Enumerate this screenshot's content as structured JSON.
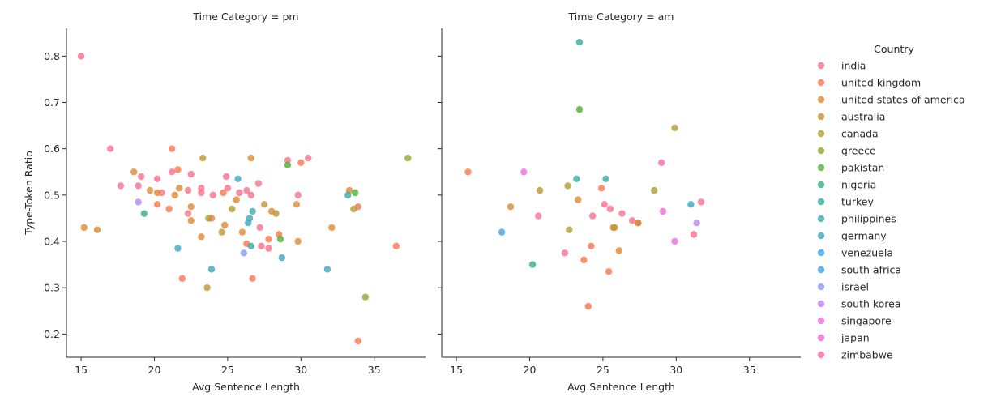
{
  "chart_data": {
    "type": "scatter",
    "xlabel": "Avg Sentence Length",
    "ylabel": "Type-Token Ratio",
    "xlim": [
      14,
      38.5
    ],
    "ylim": [
      0.15,
      0.86
    ],
    "xticks": [
      15,
      20,
      25,
      30,
      35
    ],
    "yticks": [
      0.2,
      0.3,
      0.4,
      0.5,
      0.6,
      0.7,
      0.8
    ],
    "grid": false,
    "legend": {
      "title": "Country",
      "placement": "right",
      "entries": [
        {
          "label": "india",
          "color": "#f77189"
        },
        {
          "label": "united kingdom",
          "color": "#f7754f"
        },
        {
          "label": "united states of america",
          "color": "#dc8932"
        },
        {
          "label": "australia",
          "color": "#c39532"
        },
        {
          "label": "canada",
          "color": "#ae9d31"
        },
        {
          "label": "greece",
          "color": "#97a431"
        },
        {
          "label": "pakistan",
          "color": "#50b131"
        },
        {
          "label": "nigeria",
          "color": "#34af84"
        },
        {
          "label": "turkey",
          "color": "#36ad9c"
        },
        {
          "label": "philippines",
          "color": "#38aaac"
        },
        {
          "label": "germany",
          "color": "#39a7bb"
        },
        {
          "label": "venezuela",
          "color": "#3ba3ec"
        },
        {
          "label": "south africa",
          "color": "#3ba3ec"
        },
        {
          "label": "israel",
          "color": "#8e96f4"
        },
        {
          "label": "south korea",
          "color": "#bb83f4"
        },
        {
          "label": "singapore",
          "color": "#ed6de0"
        },
        {
          "label": "japan",
          "color": "#f564d4"
        },
        {
          "label": "zimbabwe",
          "color": "#f66bad"
        }
      ]
    },
    "panels": [
      {
        "title": "Time Category = pm",
        "points": [
          {
            "c": 0,
            "x": 15.0,
            "y": 0.8
          },
          {
            "c": 0,
            "x": 17.0,
            "y": 0.6
          },
          {
            "c": 0,
            "x": 17.7,
            "y": 0.52
          },
          {
            "c": 0,
            "x": 18.9,
            "y": 0.52
          },
          {
            "c": 0,
            "x": 19.1,
            "y": 0.54
          },
          {
            "c": 0,
            "x": 20.2,
            "y": 0.535
          },
          {
            "c": 0,
            "x": 20.5,
            "y": 0.505
          },
          {
            "c": 0,
            "x": 21.2,
            "y": 0.55
          },
          {
            "c": 0,
            "x": 22.3,
            "y": 0.51
          },
          {
            "c": 0,
            "x": 22.5,
            "y": 0.545
          },
          {
            "c": 0,
            "x": 23.2,
            "y": 0.515
          },
          {
            "c": 0,
            "x": 23.2,
            "y": 0.505
          },
          {
            "c": 0,
            "x": 24.0,
            "y": 0.5
          },
          {
            "c": 0,
            "x": 24.9,
            "y": 0.54
          },
          {
            "c": 0,
            "x": 25.0,
            "y": 0.515
          },
          {
            "c": 0,
            "x": 25.8,
            "y": 0.505
          },
          {
            "c": 0,
            "x": 26.3,
            "y": 0.51
          },
          {
            "c": 0,
            "x": 26.6,
            "y": 0.5
          },
          {
            "c": 0,
            "x": 27.1,
            "y": 0.525
          },
          {
            "c": 0,
            "x": 27.2,
            "y": 0.43
          },
          {
            "c": 0,
            "x": 27.3,
            "y": 0.39
          },
          {
            "c": 0,
            "x": 27.8,
            "y": 0.385
          },
          {
            "c": 0,
            "x": 29.1,
            "y": 0.575
          },
          {
            "c": 0,
            "x": 29.8,
            "y": 0.5
          },
          {
            "c": 0,
            "x": 30.5,
            "y": 0.58
          },
          {
            "c": 0,
            "x": 22.3,
            "y": 0.46
          },
          {
            "c": 1,
            "x": 20.2,
            "y": 0.48
          },
          {
            "c": 1,
            "x": 21.0,
            "y": 0.47
          },
          {
            "c": 1,
            "x": 21.2,
            "y": 0.6
          },
          {
            "c": 1,
            "x": 21.6,
            "y": 0.555
          },
          {
            "c": 1,
            "x": 21.9,
            "y": 0.32
          },
          {
            "c": 1,
            "x": 23.9,
            "y": 0.45
          },
          {
            "c": 1,
            "x": 24.7,
            "y": 0.505
          },
          {
            "c": 1,
            "x": 26.3,
            "y": 0.395
          },
          {
            "c": 1,
            "x": 26.7,
            "y": 0.32
          },
          {
            "c": 1,
            "x": 27.8,
            "y": 0.405
          },
          {
            "c": 1,
            "x": 28.5,
            "y": 0.415
          },
          {
            "c": 1,
            "x": 30.0,
            "y": 0.57
          },
          {
            "c": 1,
            "x": 33.9,
            "y": 0.475
          },
          {
            "c": 1,
            "x": 33.9,
            "y": 0.185
          },
          {
            "c": 1,
            "x": 36.5,
            "y": 0.39
          },
          {
            "c": 2,
            "x": 15.2,
            "y": 0.43
          },
          {
            "c": 2,
            "x": 16.1,
            "y": 0.425
          },
          {
            "c": 2,
            "x": 18.6,
            "y": 0.55
          },
          {
            "c": 2,
            "x": 19.7,
            "y": 0.51
          },
          {
            "c": 2,
            "x": 20.2,
            "y": 0.505
          },
          {
            "c": 2,
            "x": 21.4,
            "y": 0.5
          },
          {
            "c": 2,
            "x": 21.7,
            "y": 0.515
          },
          {
            "c": 2,
            "x": 22.5,
            "y": 0.475
          },
          {
            "c": 2,
            "x": 22.5,
            "y": 0.445
          },
          {
            "c": 2,
            "x": 23.2,
            "y": 0.41
          },
          {
            "c": 2,
            "x": 24.8,
            "y": 0.435
          },
          {
            "c": 2,
            "x": 25.6,
            "y": 0.49
          },
          {
            "c": 2,
            "x": 26.0,
            "y": 0.42
          },
          {
            "c": 2,
            "x": 26.6,
            "y": 0.58
          },
          {
            "c": 2,
            "x": 28.0,
            "y": 0.465
          },
          {
            "c": 2,
            "x": 29.7,
            "y": 0.48
          },
          {
            "c": 2,
            "x": 29.8,
            "y": 0.4
          },
          {
            "c": 2,
            "x": 32.1,
            "y": 0.43
          },
          {
            "c": 2,
            "x": 33.3,
            "y": 0.51
          },
          {
            "c": 3,
            "x": 23.3,
            "y": 0.58
          },
          {
            "c": 3,
            "x": 23.6,
            "y": 0.3
          },
          {
            "c": 3,
            "x": 24.6,
            "y": 0.42
          },
          {
            "c": 3,
            "x": 27.5,
            "y": 0.48
          },
          {
            "c": 4,
            "x": 23.7,
            "y": 0.45
          },
          {
            "c": 4,
            "x": 25.3,
            "y": 0.47
          },
          {
            "c": 4,
            "x": 28.3,
            "y": 0.46
          },
          {
            "c": 4,
            "x": 33.6,
            "y": 0.47
          },
          {
            "c": 5,
            "x": 34.4,
            "y": 0.28
          },
          {
            "c": 5,
            "x": 37.3,
            "y": 0.58
          },
          {
            "c": 6,
            "x": 28.6,
            "y": 0.405
          },
          {
            "c": 6,
            "x": 29.1,
            "y": 0.565
          },
          {
            "c": 6,
            "x": 33.7,
            "y": 0.505
          },
          {
            "c": 7,
            "x": 19.3,
            "y": 0.46
          },
          {
            "c": 9,
            "x": 26.7,
            "y": 0.465
          },
          {
            "c": 9,
            "x": 26.6,
            "y": 0.39
          },
          {
            "c": 9,
            "x": 33.2,
            "y": 0.5
          },
          {
            "c": 10,
            "x": 21.6,
            "y": 0.385
          },
          {
            "c": 10,
            "x": 23.9,
            "y": 0.34
          },
          {
            "c": 10,
            "x": 25.7,
            "y": 0.535
          },
          {
            "c": 10,
            "x": 26.4,
            "y": 0.44
          },
          {
            "c": 10,
            "x": 26.5,
            "y": 0.45
          },
          {
            "c": 10,
            "x": 28.7,
            "y": 0.365
          },
          {
            "c": 10,
            "x": 31.8,
            "y": 0.34
          },
          {
            "c": 13,
            "x": 26.1,
            "y": 0.375
          },
          {
            "c": 14,
            "x": 18.9,
            "y": 0.485
          }
        ]
      },
      {
        "title": "Time Category = am",
        "points": [
          {
            "c": 0,
            "x": 20.6,
            "y": 0.455
          },
          {
            "c": 0,
            "x": 22.4,
            "y": 0.375
          },
          {
            "c": 0,
            "x": 24.3,
            "y": 0.455
          },
          {
            "c": 0,
            "x": 25.1,
            "y": 0.48
          },
          {
            "c": 0,
            "x": 25.5,
            "y": 0.47
          },
          {
            "c": 0,
            "x": 26.3,
            "y": 0.46
          },
          {
            "c": 0,
            "x": 27.0,
            "y": 0.445
          },
          {
            "c": 0,
            "x": 27.4,
            "y": 0.44
          },
          {
            "c": 0,
            "x": 31.2,
            "y": 0.415
          },
          {
            "c": 0,
            "x": 31.7,
            "y": 0.485
          },
          {
            "c": 1,
            "x": 15.8,
            "y": 0.55
          },
          {
            "c": 1,
            "x": 23.7,
            "y": 0.36
          },
          {
            "c": 1,
            "x": 24.0,
            "y": 0.26
          },
          {
            "c": 1,
            "x": 24.2,
            "y": 0.39
          },
          {
            "c": 1,
            "x": 24.9,
            "y": 0.515
          },
          {
            "c": 1,
            "x": 25.4,
            "y": 0.335
          },
          {
            "c": 2,
            "x": 18.7,
            "y": 0.475
          },
          {
            "c": 2,
            "x": 23.3,
            "y": 0.49
          },
          {
            "c": 2,
            "x": 25.8,
            "y": 0.43
          },
          {
            "c": 2,
            "x": 26.1,
            "y": 0.38
          },
          {
            "c": 2,
            "x": 27.4,
            "y": 0.44
          },
          {
            "c": 3,
            "x": 20.7,
            "y": 0.51
          },
          {
            "c": 3,
            "x": 25.7,
            "y": 0.43
          },
          {
            "c": 4,
            "x": 22.6,
            "y": 0.52
          },
          {
            "c": 4,
            "x": 22.7,
            "y": 0.425
          },
          {
            "c": 4,
            "x": 28.5,
            "y": 0.51
          },
          {
            "c": 4,
            "x": 29.9,
            "y": 0.645
          },
          {
            "c": 6,
            "x": 23.4,
            "y": 0.685
          },
          {
            "c": 7,
            "x": 20.2,
            "y": 0.35
          },
          {
            "c": 8,
            "x": 23.4,
            "y": 0.83
          },
          {
            "c": 8,
            "x": 23.2,
            "y": 0.535
          },
          {
            "c": 8,
            "x": 25.2,
            "y": 0.535
          },
          {
            "c": 10,
            "x": 31.0,
            "y": 0.48
          },
          {
            "c": 12,
            "x": 18.1,
            "y": 0.42
          },
          {
            "c": 14,
            "x": 31.4,
            "y": 0.44
          },
          {
            "c": 15,
            "x": 19.6,
            "y": 0.55
          },
          {
            "c": 15,
            "x": 29.9,
            "y": 0.4
          },
          {
            "c": 16,
            "x": 29.1,
            "y": 0.465
          },
          {
            "c": 17,
            "x": 29.0,
            "y": 0.57
          }
        ]
      }
    ]
  }
}
